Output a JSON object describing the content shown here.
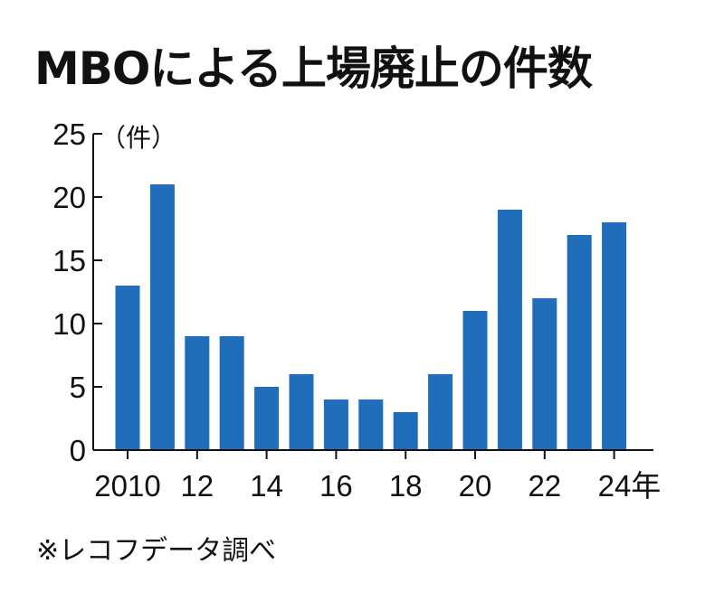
{
  "title": "MBOによる上場廃止の件数",
  "source": "※レコフデータ調べ",
  "colors": {
    "bar": "#1f6dbb",
    "axis": "#111111"
  },
  "chart_data": {
    "type": "bar",
    "title": "MBOによる上場廃止の件数",
    "unit_label": "（件）",
    "categories": [
      "2010",
      "2011",
      "2012",
      "2013",
      "2014",
      "2015",
      "2016",
      "2017",
      "2018",
      "2019",
      "2020",
      "2021",
      "2022",
      "2023",
      "2024"
    ],
    "values": [
      13,
      21,
      9,
      9,
      5,
      6,
      4,
      4,
      3,
      6,
      11,
      19,
      12,
      17,
      18
    ],
    "x_tick_labels": [
      {
        "category": "2010",
        "label": "2010"
      },
      {
        "category": "2012",
        "label": "12"
      },
      {
        "category": "2014",
        "label": "14"
      },
      {
        "category": "2016",
        "label": "16"
      },
      {
        "category": "2018",
        "label": "18"
      },
      {
        "category": "2020",
        "label": "20"
      },
      {
        "category": "2022",
        "label": "22"
      },
      {
        "category": "2024",
        "label": "24年"
      }
    ],
    "y_ticks": [
      0,
      5,
      10,
      15,
      20,
      25
    ],
    "ylim": [
      0,
      25
    ],
    "xlabel": "",
    "ylabel": "件"
  }
}
